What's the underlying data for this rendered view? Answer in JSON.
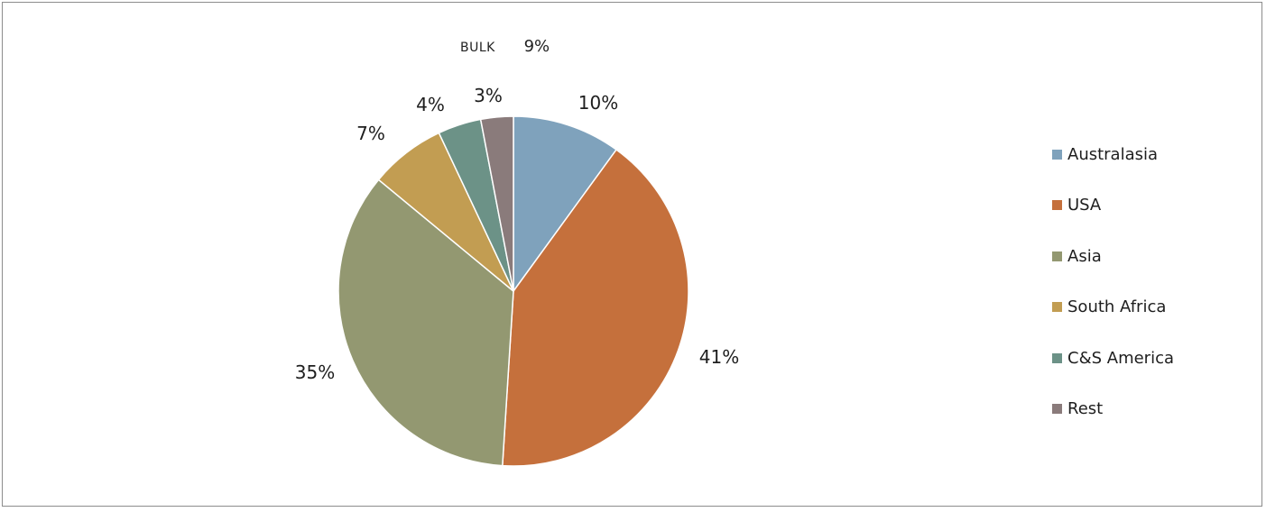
{
  "chart_title": {
    "label": "Bulk",
    "value": "9%"
  },
  "chart_data": {
    "type": "pie",
    "title": "Bulk 9%",
    "start_angle": "12 o'clock",
    "direction": "clockwise",
    "slices": [
      {
        "name": "Australasia",
        "value": 10,
        "label": "10%",
        "color": "#7fa2bc"
      },
      {
        "name": "USA",
        "value": 41,
        "label": "41%",
        "color": "#c5703c"
      },
      {
        "name": "Asia",
        "value": 35,
        "label": "35%",
        "color": "#939871"
      },
      {
        "name": "South Africa",
        "value": 7,
        "label": "7%",
        "color": "#c29d52"
      },
      {
        "name": "C&S America",
        "value": 4,
        "label": "4%",
        "color": "#6c9287"
      },
      {
        "name": "Rest",
        "value": 3,
        "label": "3%",
        "color": "#8a7b7b"
      }
    ],
    "legend_position": "right"
  }
}
